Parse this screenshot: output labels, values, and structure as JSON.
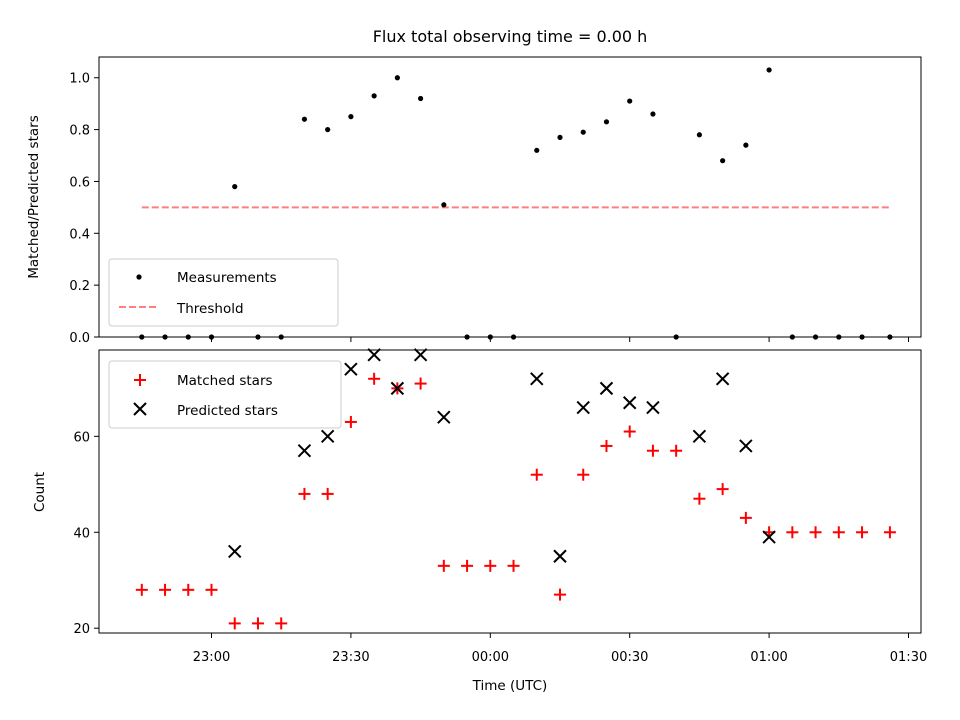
{
  "chart_data": [
    {
      "type": "scatter",
      "title": "Flux total observing time = 0.00 h",
      "xlabel": "",
      "ylabel": "Matched/Predicted stars",
      "ylim": [
        0,
        1.08
      ],
      "yticks": [
        "0.0",
        "0.2",
        "0.4",
        "0.6",
        "0.8",
        "1.0"
      ],
      "ytick_values": [
        0,
        0.2,
        0.4,
        0.6,
        0.8,
        1.0
      ],
      "legend_position": "lower-left",
      "series": [
        {
          "name": "Measurements",
          "marker": "dot",
          "color": "#000000",
          "x": [
            "22:45",
            "22:50",
            "22:55",
            "23:00",
            "23:05",
            "23:10",
            "23:15",
            "23:20",
            "23:25",
            "23:30",
            "23:35",
            "23:40",
            "23:45",
            "23:50",
            "23:55",
            "00:00",
            "00:05",
            "00:10",
            "00:15",
            "00:20",
            "00:25",
            "00:30",
            "00:35",
            "00:40",
            "00:45",
            "00:50",
            "00:55",
            "01:00",
            "01:05",
            "01:10",
            "01:15",
            "01:20",
            "01:26"
          ],
          "y": [
            0,
            0,
            0,
            0,
            0.58,
            0,
            0,
            0.84,
            0.8,
            0.85,
            0.93,
            1.0,
            0.92,
            0.51,
            0,
            0,
            0,
            0.72,
            0.77,
            0.79,
            0.83,
            0.91,
            0.86,
            0,
            0.78,
            0.68,
            0.74,
            1.03,
            0,
            0,
            0,
            0,
            0
          ]
        },
        {
          "name": "Threshold",
          "style": "dashed",
          "color": "#ff7f7f",
          "x": [
            "22:45",
            "01:26"
          ],
          "y": [
            0.5,
            0.5
          ]
        }
      ]
    },
    {
      "type": "scatter",
      "title": "",
      "xlabel": "Time (UTC)",
      "ylabel": "Count",
      "ylim": [
        19,
        78
      ],
      "yticks": [
        "20",
        "40",
        "60"
      ],
      "ytick_values": [
        20,
        40,
        60
      ],
      "xticks": [
        "23:00",
        "23:30",
        "00:00",
        "00:30",
        "01:00",
        "01:30"
      ],
      "legend_position": "upper-left",
      "series": [
        {
          "name": "Matched stars",
          "marker": "plus",
          "color": "#ff0000",
          "x": [
            "22:45",
            "22:50",
            "22:55",
            "23:00",
            "23:05",
            "23:10",
            "23:15",
            "23:20",
            "23:25",
            "23:30",
            "23:35",
            "23:40",
            "23:45",
            "23:50",
            "23:55",
            "00:00",
            "00:05",
            "00:10",
            "00:15",
            "00:20",
            "00:25",
            "00:30",
            "00:35",
            "00:40",
            "00:45",
            "00:50",
            "00:55",
            "01:00",
            "01:05",
            "01:10",
            "01:15",
            "01:20",
            "01:26"
          ],
          "y": [
            28,
            28,
            28,
            28,
            21,
            21,
            21,
            48,
            48,
            63,
            72,
            70,
            71,
            33,
            33,
            33,
            33,
            52,
            27,
            52,
            58,
            61,
            57,
            57,
            47,
            49,
            43,
            40,
            40,
            40,
            40,
            40,
            40
          ]
        },
        {
          "name": "Predicted stars",
          "marker": "x",
          "color": "#000000",
          "x": [
            "23:05",
            "23:20",
            "23:25",
            "23:30",
            "23:35",
            "23:40",
            "23:45",
            "23:50",
            "00:10",
            "00:15",
            "00:20",
            "00:25",
            "00:30",
            "00:35",
            "00:45",
            "00:50",
            "00:55",
            "01:00"
          ],
          "y": [
            36,
            57,
            60,
            74,
            77,
            70,
            77,
            64,
            72,
            35,
            66,
            70,
            67,
            66,
            60,
            72,
            58,
            39
          ]
        }
      ]
    }
  ]
}
